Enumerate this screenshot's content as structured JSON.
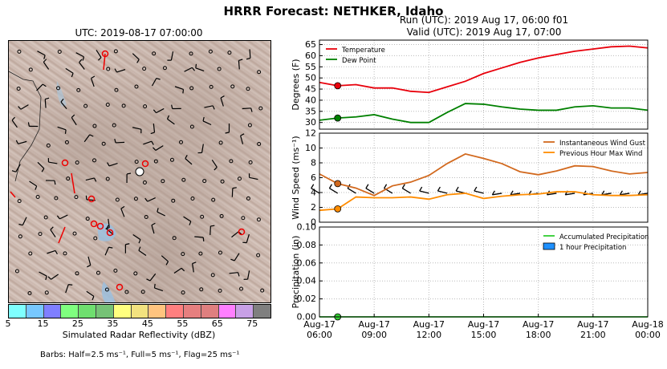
{
  "suptitle": "HRRR Forecast: NETHKER, Idaho",
  "map_title": "UTC: 2019-08-17 07:00:00",
  "run_line1": "Run (UTC): 2019 Aug 17, 06:00 f01",
  "run_line2": "Valid (UTC): 2019 Aug 17, 07:00",
  "colorbar": {
    "label": "Simulated Radar Reflectivity (dBZ)",
    "ticks": [
      "5",
      "15",
      "25",
      "35",
      "45",
      "55",
      "65",
      "75"
    ],
    "colors": [
      "#7fffff",
      "#77c8ff",
      "#7f7fff",
      "#7fff7f",
      "#6fdf6f",
      "#76c276",
      "#ffff7f",
      "#f2e27f",
      "#ffc47f",
      "#ff7f7f",
      "#e67f7f",
      "#df7f7f",
      "#ff7fff",
      "#c8a0e6",
      "#7f7f7f"
    ]
  },
  "barb_note": "Barbs: Half=2.5 ms⁻¹, Full=5 ms⁻¹, Flag=25 ms⁻¹",
  "chart_data": [
    {
      "type": "line",
      "ylabel": "Degrees (F)",
      "ylim": [
        27,
        67
      ],
      "yticks": [
        "30",
        "35",
        "40",
        "45",
        "50",
        "55",
        "60",
        "65"
      ],
      "x": [
        6,
        7,
        8,
        9,
        10,
        11,
        12,
        13,
        14,
        15,
        16,
        17,
        18,
        19,
        20,
        21,
        22,
        23,
        24
      ],
      "series": [
        {
          "name": "Temperature",
          "color": "#e8000b",
          "values": [
            48,
            46.5,
            47,
            45.5,
            45.5,
            44,
            43.5,
            46,
            48.5,
            52,
            54.5,
            57,
            59,
            60.5,
            62,
            63,
            64,
            64.3,
            63.5
          ]
        },
        {
          "name": "Dew Point",
          "color": "#008000",
          "values": [
            31,
            32,
            32.5,
            33.5,
            31.5,
            30,
            30,
            34.5,
            38.5,
            38.2,
            37,
            36,
            35.5,
            35.5,
            37,
            37.5,
            36.5,
            36.5,
            35.5
          ]
        }
      ],
      "current_marker_x": 7,
      "legend": "top-left",
      "grid": true
    },
    {
      "type": "line",
      "ylabel": "Wind Speed (ms⁻¹)",
      "ylim": [
        0,
        12
      ],
      "yticks": [
        "0",
        "2",
        "4",
        "6",
        "8",
        "10",
        "12"
      ],
      "x": [
        6,
        7,
        8,
        9,
        10,
        11,
        12,
        13,
        14,
        15,
        16,
        17,
        18,
        19,
        20,
        21,
        22,
        23,
        24
      ],
      "series": [
        {
          "name": "Instantaneous Wind Gust",
          "color": "#d2691e",
          "values": [
            6.5,
            5.2,
            4.6,
            3.6,
            4.9,
            5.4,
            6.3,
            7.9,
            9.2,
            8.6,
            7.9,
            6.8,
            6.4,
            6.9,
            7.6,
            7.5,
            6.9,
            6.5,
            6.7
          ]
        },
        {
          "name": "Previous Hour Max Wind",
          "color": "#ff8c00",
          "values": [
            1.6,
            1.8,
            3.4,
            3.3,
            3.3,
            3.4,
            3.1,
            3.7,
            3.9,
            3.2,
            3.5,
            3.7,
            3.8,
            4.1,
            4.1,
            3.7,
            3.6,
            3.6,
            3.7
          ]
        }
      ],
      "current_marker_x": 7,
      "legend": "top-right",
      "grid": true
    },
    {
      "type": "line",
      "ylabel": "Precipitation (in)",
      "ylim": [
        0,
        0.1
      ],
      "yticks": [
        "0.00",
        "0.02",
        "0.04",
        "0.06",
        "0.08",
        "0.10"
      ],
      "xtick_labels": [
        [
          "Aug-17",
          "06:00"
        ],
        [
          "Aug-17",
          "09:00"
        ],
        [
          "Aug-17",
          "12:00"
        ],
        [
          "Aug-17",
          "15:00"
        ],
        [
          "Aug-17",
          "18:00"
        ],
        [
          "Aug-17",
          "21:00"
        ],
        [
          "Aug-18",
          "00:00"
        ]
      ],
      "x": [
        6,
        7,
        8,
        9,
        10,
        11,
        12,
        13,
        14,
        15,
        16,
        17,
        18,
        19,
        20,
        21,
        22,
        23,
        24
      ],
      "series": [
        {
          "name": "Accumulated Precipitation",
          "color": "#32cd32",
          "values": [
            0,
            0,
            0,
            0,
            0,
            0,
            0,
            0,
            0,
            0,
            0,
            0,
            0,
            0,
            0,
            0,
            0,
            0,
            0
          ]
        },
        {
          "name": "1 hour Precipitation",
          "color": "#1e90ff",
          "kind": "bar",
          "values": [
            0,
            0,
            0,
            0,
            0,
            0,
            0,
            0,
            0,
            0,
            0,
            0,
            0,
            0,
            0,
            0,
            0,
            0,
            0
          ]
        }
      ],
      "current_marker_x": 7,
      "legend": "top-right",
      "grid": true
    }
  ]
}
